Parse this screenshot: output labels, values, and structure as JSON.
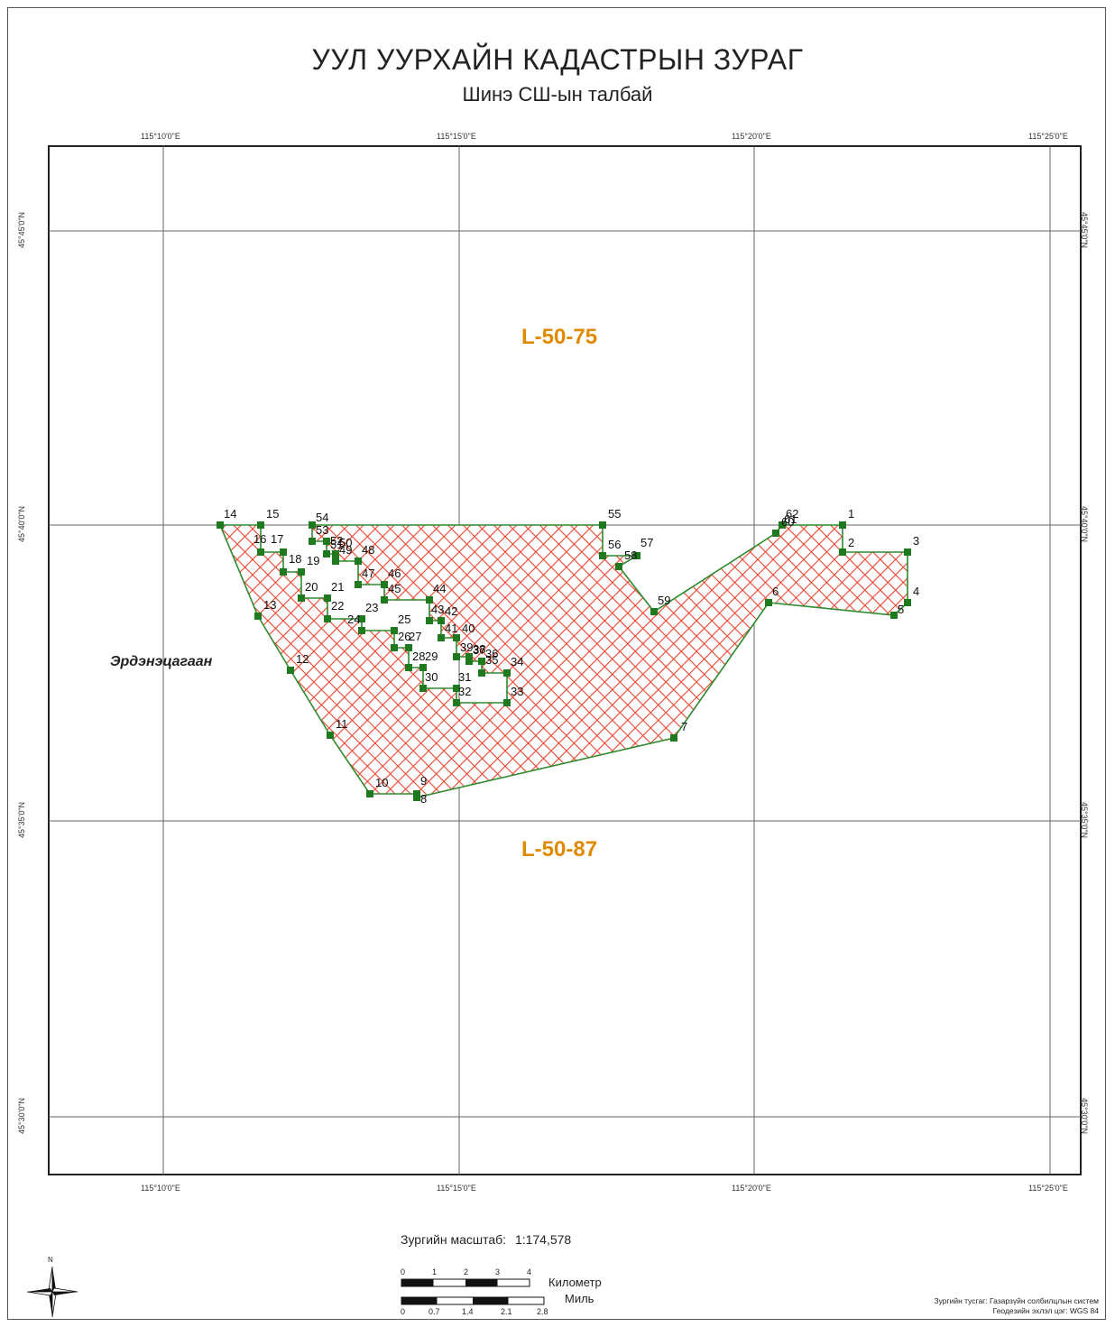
{
  "header": {
    "title": "УУЛ УУРХАЙН КАДАСТРЫН ЗУРАГ",
    "subtitle": "Шинэ СШ-ын талбай"
  },
  "graticule": {
    "longitudes": [
      "115°10'0\"E",
      "115°15'0\"E",
      "115°20'0\"E",
      "115°25'0\"E"
    ],
    "latitudes": [
      "45°45'0\"N",
      "45°40'0\"N",
      "45°35'0\"N",
      "45°30'0\"N"
    ]
  },
  "sheets": {
    "north": "L-50-75",
    "south": "L-50-87"
  },
  "region_name": "Эрдэнэцагаан",
  "parcel": {
    "fill_color": "#e83a2a",
    "outline_color": "#2e8b2e",
    "vertex_color": "#1f7a1f",
    "vertex_labels": [
      "1",
      "2",
      "3",
      "4",
      "5",
      "6",
      "7",
      "8",
      "9",
      "10",
      "11",
      "12",
      "13",
      "14",
      "15",
      "16",
      "17",
      "18",
      "19",
      "20",
      "21",
      "22",
      "23",
      "24",
      "25",
      "26",
      "27",
      "28",
      "29",
      "30",
      "31",
      "32",
      "33",
      "34",
      "35",
      "36",
      "37",
      "38",
      "39",
      "40",
      "41",
      "42",
      "43",
      "44",
      "45",
      "46",
      "47",
      "48",
      "49",
      "50",
      "51",
      "52",
      "53",
      "54",
      "55",
      "56",
      "57",
      "58",
      "59",
      "60",
      "61",
      "62"
    ]
  },
  "scale": {
    "label": "Зургийн масштаб:",
    "value": "1:174,578",
    "km_ticks": [
      "0",
      "1",
      "2",
      "3",
      "4"
    ],
    "km_unit": "Километр",
    "mile_ticks": [
      "0",
      "0.7",
      "1.4",
      "2.1",
      "2.8"
    ],
    "mile_unit": "Миль"
  },
  "north_arrow": {
    "label": "N"
  },
  "credits": {
    "projection": "Зургийн тусгаг: Газарзүйн солбилцлын систем",
    "datum": "Геодезийн эхлэл цэг: WGS 84"
  }
}
